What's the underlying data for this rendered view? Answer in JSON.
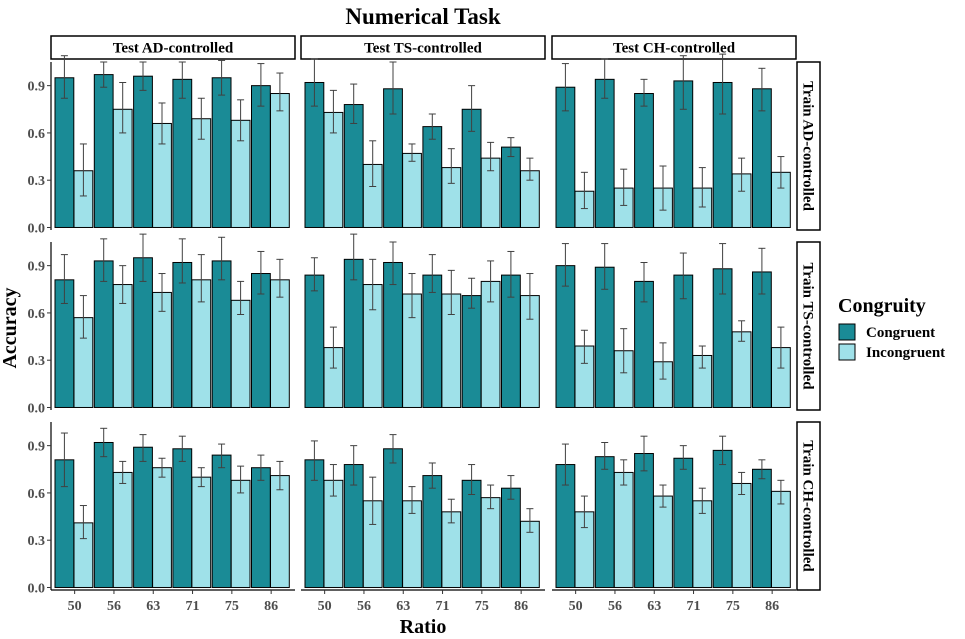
{
  "chart_data": {
    "type": "bar",
    "title": "Numerical Task",
    "xlabel": "Ratio",
    "ylabel": "Accuracy",
    "ylim": [
      0,
      1.05
    ],
    "yticks": [
      "0.0",
      "0.3",
      "0.6",
      "0.9"
    ],
    "categories": [
      "50",
      "56",
      "63",
      "71",
      "75",
      "86"
    ],
    "legend": {
      "title": "Congruity",
      "position": "right",
      "entries": [
        "Congruent",
        "Incongruent"
      ]
    },
    "colors": {
      "Congruent": "#1a8b96",
      "Incongruent": "#9fe1e9",
      "outline": "#000000",
      "errorbar": "#404040"
    },
    "col_facets": [
      "Test AD-controlled",
      "Test TS-controlled",
      "Test CH-controlled"
    ],
    "row_facets": [
      "Train AD-controlled",
      "Train TS-controlled",
      "Train CH-controlled"
    ],
    "panels": [
      [
        {
          "series": [
            {
              "name": "Congruent",
              "values": [
                0.95,
                0.97,
                0.96,
                0.94,
                0.95,
                0.9
              ],
              "err_low": [
                0.82,
                0.89,
                0.87,
                0.82,
                0.84,
                0.77
              ],
              "err_high": [
                1.09,
                1.05,
                1.05,
                1.05,
                1.06,
                1.04
              ]
            },
            {
              "name": "Incongruent",
              "values": [
                0.36,
                0.75,
                0.66,
                0.69,
                0.68,
                0.85
              ],
              "err_low": [
                0.2,
                0.6,
                0.53,
                0.56,
                0.55,
                0.74
              ],
              "err_high": [
                0.53,
                0.92,
                0.79,
                0.82,
                0.81,
                0.98
              ]
            }
          ]
        },
        {
          "series": [
            {
              "name": "Congruent",
              "values": [
                0.92,
                0.78,
                0.88,
                0.64,
                0.75,
                0.51
              ],
              "err_low": [
                0.77,
                0.66,
                0.72,
                0.56,
                0.61,
                0.45
              ],
              "err_high": [
                1.07,
                0.91,
                1.05,
                0.72,
                0.9,
                0.57
              ]
            },
            {
              "name": "Incongruent",
              "values": [
                0.73,
                0.4,
                0.47,
                0.38,
                0.44,
                0.36
              ],
              "err_low": [
                0.6,
                0.26,
                0.42,
                0.28,
                0.36,
                0.3
              ],
              "err_high": [
                0.87,
                0.55,
                0.53,
                0.5,
                0.54,
                0.44
              ]
            }
          ]
        },
        {
          "series": [
            {
              "name": "Congruent",
              "values": [
                0.89,
                0.94,
                0.85,
                0.93,
                0.92,
                0.88
              ],
              "err_low": [
                0.74,
                0.82,
                0.77,
                0.75,
                0.72,
                0.74
              ],
              "err_high": [
                1.04,
                1.07,
                0.94,
                1.09,
                1.1,
                1.01
              ]
            },
            {
              "name": "Incongruent",
              "values": [
                0.23,
                0.25,
                0.25,
                0.25,
                0.34,
                0.35
              ],
              "err_low": [
                0.12,
                0.14,
                0.11,
                0.13,
                0.23,
                0.25
              ],
              "err_high": [
                0.35,
                0.37,
                0.39,
                0.38,
                0.44,
                0.45
              ]
            }
          ]
        }
      ],
      [
        {
          "series": [
            {
              "name": "Congruent",
              "values": [
                0.81,
                0.93,
                0.95,
                0.92,
                0.93,
                0.85
              ],
              "err_low": [
                0.66,
                0.8,
                0.8,
                0.79,
                0.81,
                0.72
              ],
              "err_high": [
                0.97,
                1.07,
                1.1,
                1.07,
                1.08,
                0.99
              ]
            },
            {
              "name": "Incongruent",
              "values": [
                0.57,
                0.78,
                0.73,
                0.81,
                0.68,
                0.81
              ],
              "err_low": [
                0.44,
                0.66,
                0.61,
                0.67,
                0.59,
                0.7
              ],
              "err_high": [
                0.71,
                0.9,
                0.85,
                0.97,
                0.8,
                0.94
              ]
            }
          ]
        },
        {
          "series": [
            {
              "name": "Congruent",
              "values": [
                0.84,
                0.94,
                0.92,
                0.84,
                0.71,
                0.84
              ],
              "err_low": [
                0.74,
                0.81,
                0.78,
                0.73,
                0.63,
                0.7
              ],
              "err_high": [
                0.95,
                1.1,
                1.05,
                0.97,
                0.82,
                0.99
              ]
            },
            {
              "name": "Incongruent",
              "values": [
                0.38,
                0.78,
                0.72,
                0.72,
                0.8,
                0.71
              ],
              "err_low": [
                0.25,
                0.62,
                0.57,
                0.59,
                0.67,
                0.56
              ],
              "err_high": [
                0.51,
                0.94,
                0.85,
                0.87,
                0.93,
                0.85
              ]
            }
          ]
        },
        {
          "series": [
            {
              "name": "Congruent",
              "values": [
                0.9,
                0.89,
                0.8,
                0.84,
                0.88,
                0.86
              ],
              "err_low": [
                0.77,
                0.75,
                0.67,
                0.69,
                0.72,
                0.72
              ],
              "err_high": [
                1.04,
                1.04,
                0.92,
                0.98,
                1.04,
                1.01
              ]
            },
            {
              "name": "Incongruent",
              "values": [
                0.39,
                0.36,
                0.29,
                0.33,
                0.48,
                0.38
              ],
              "err_low": [
                0.28,
                0.22,
                0.18,
                0.25,
                0.42,
                0.25
              ],
              "err_high": [
                0.49,
                0.5,
                0.41,
                0.39,
                0.55,
                0.51
              ]
            }
          ]
        }
      ],
      [
        {
          "series": [
            {
              "name": "Congruent",
              "values": [
                0.81,
                0.92,
                0.89,
                0.88,
                0.84,
                0.76
              ],
              "err_low": [
                0.64,
                0.83,
                0.8,
                0.8,
                0.76,
                0.68
              ],
              "err_high": [
                0.98,
                1.01,
                0.97,
                0.96,
                0.91,
                0.84
              ]
            },
            {
              "name": "Incongruent",
              "values": [
                0.41,
                0.73,
                0.76,
                0.7,
                0.68,
                0.71
              ],
              "err_low": [
                0.31,
                0.66,
                0.7,
                0.64,
                0.6,
                0.62
              ],
              "err_high": [
                0.52,
                0.8,
                0.82,
                0.76,
                0.77,
                0.8
              ]
            }
          ]
        },
        {
          "series": [
            {
              "name": "Congruent",
              "values": [
                0.81,
                0.78,
                0.88,
                0.71,
                0.68,
                0.63
              ],
              "err_low": [
                0.68,
                0.65,
                0.79,
                0.63,
                0.59,
                0.56
              ],
              "err_high": [
                0.93,
                0.9,
                0.97,
                0.79,
                0.78,
                0.71
              ]
            },
            {
              "name": "Incongruent",
              "values": [
                0.68,
                0.55,
                0.55,
                0.48,
                0.57,
                0.42
              ],
              "err_low": [
                0.58,
                0.4,
                0.47,
                0.41,
                0.5,
                0.35
              ],
              "err_high": [
                0.78,
                0.7,
                0.64,
                0.56,
                0.65,
                0.5
              ]
            }
          ]
        },
        {
          "series": [
            {
              "name": "Congruent",
              "values": [
                0.78,
                0.83,
                0.85,
                0.82,
                0.87,
                0.75
              ],
              "err_low": [
                0.65,
                0.75,
                0.74,
                0.75,
                0.78,
                0.69
              ],
              "err_high": [
                0.91,
                0.92,
                0.96,
                0.9,
                0.96,
                0.81
              ]
            },
            {
              "name": "Incongruent",
              "values": [
                0.48,
                0.73,
                0.58,
                0.55,
                0.66,
                0.61
              ],
              "err_low": [
                0.38,
                0.65,
                0.51,
                0.47,
                0.59,
                0.53
              ],
              "err_high": [
                0.58,
                0.81,
                0.65,
                0.63,
                0.73,
                0.68
              ]
            }
          ]
        }
      ]
    ]
  }
}
